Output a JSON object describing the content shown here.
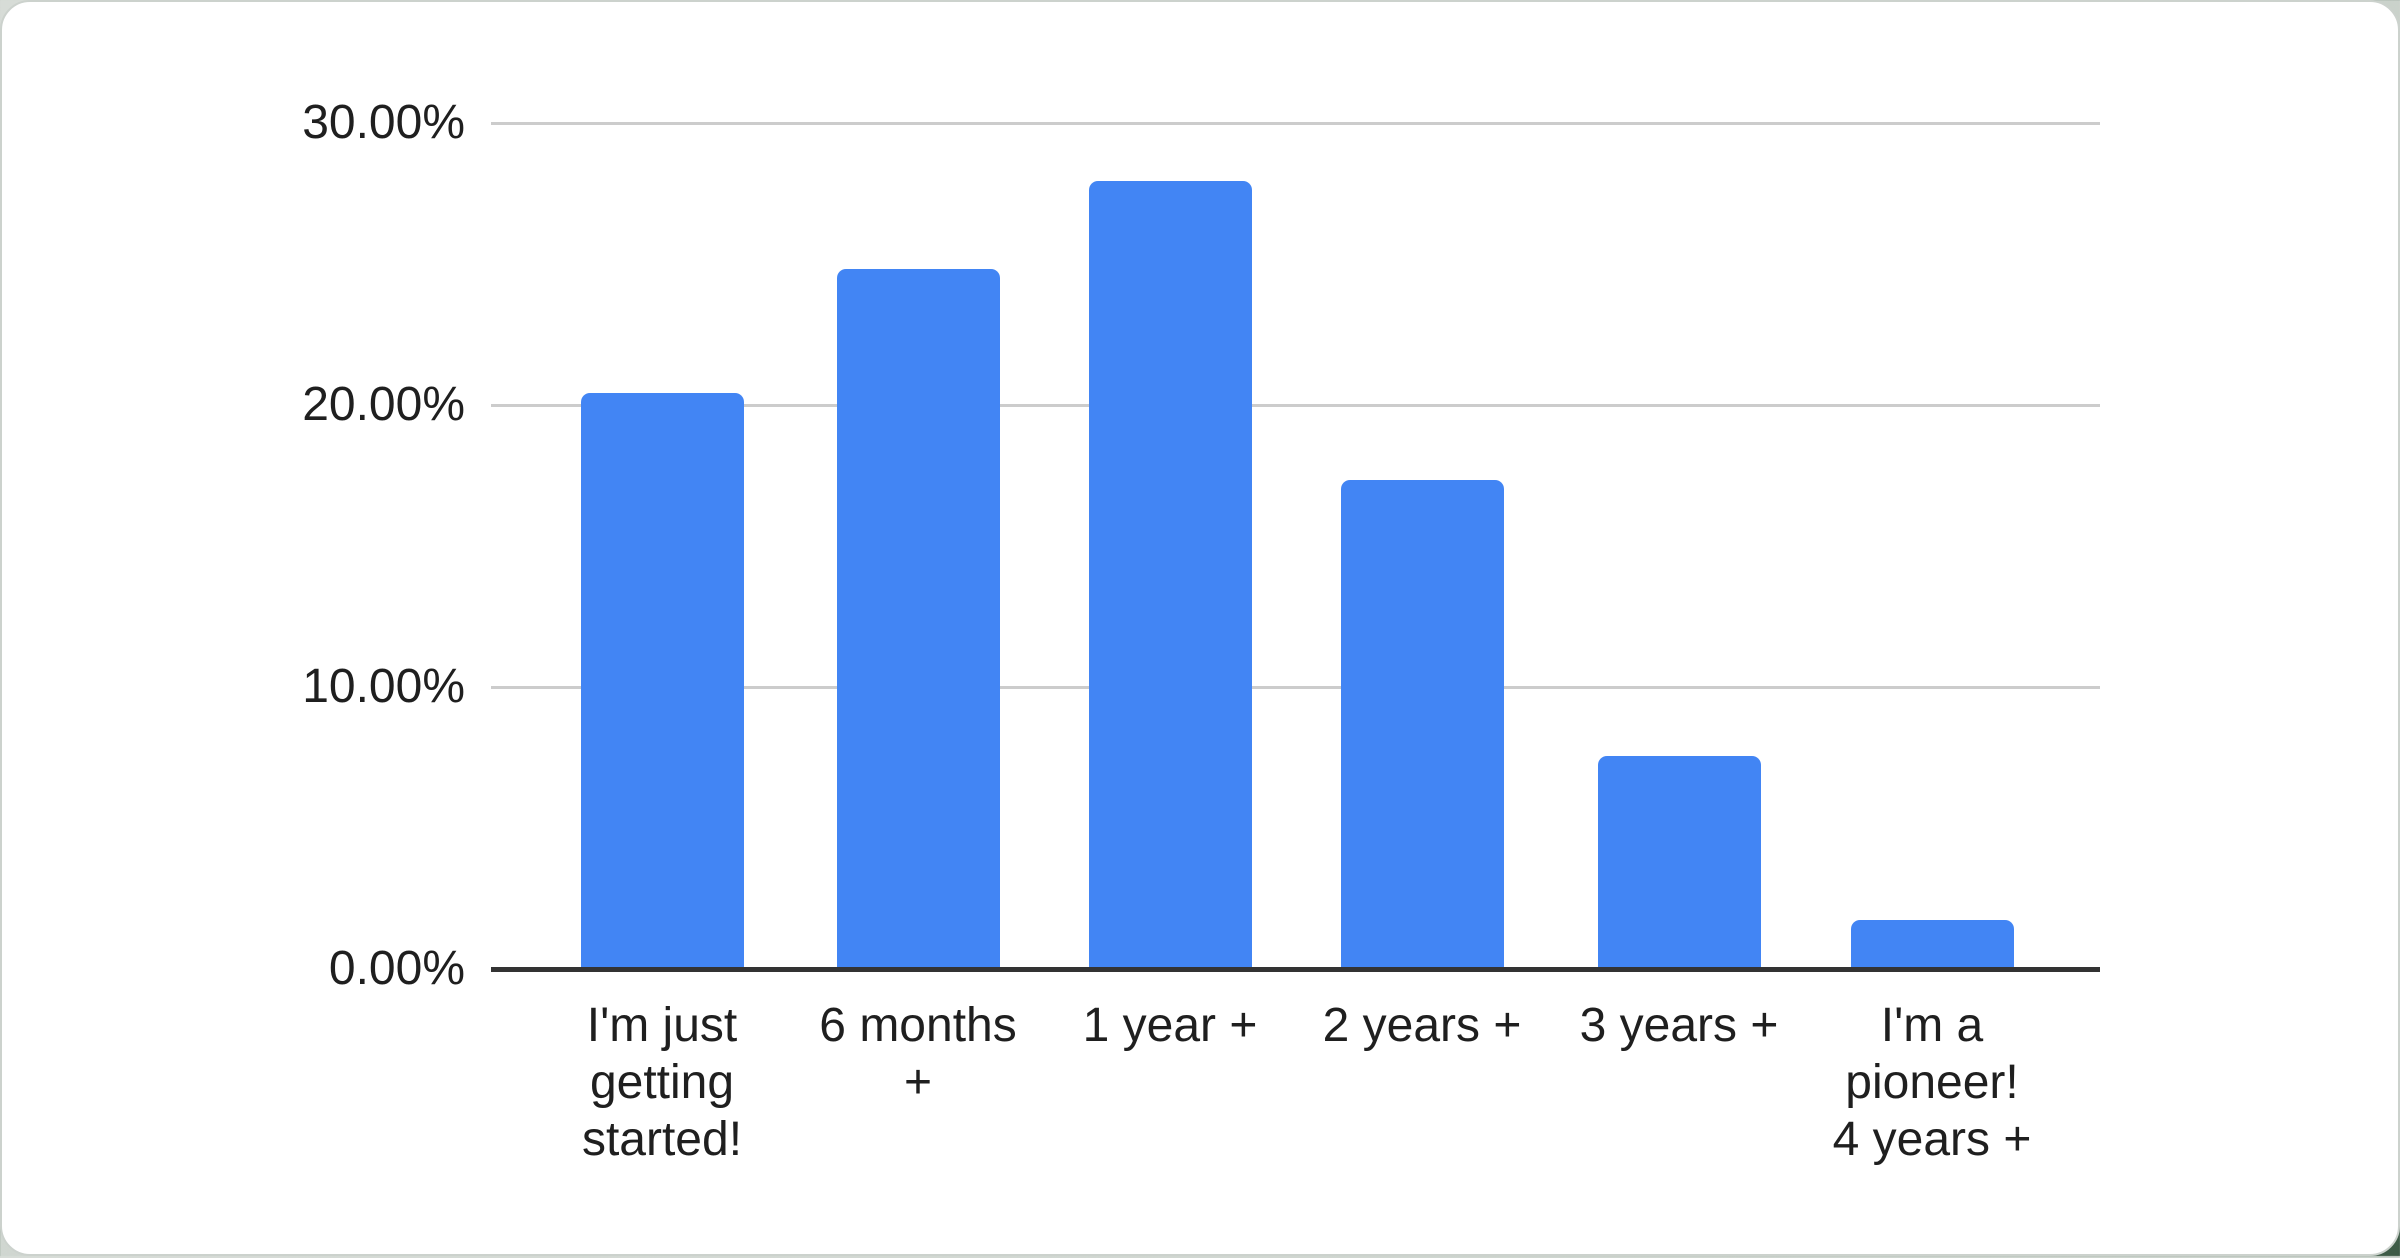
{
  "page": {
    "outer_background": "#c9d1ca",
    "card_background": "#ffffff",
    "card_border_color": "#ccd2cd"
  },
  "chart_data": {
    "type": "bar",
    "title": "",
    "xlabel": "",
    "ylabel": "",
    "categories": [
      "I'm just getting started!",
      "6 months +",
      "1 year +",
      "2 years +",
      "3 years +",
      "I'm a pioneer! 4 years +"
    ],
    "x_tick_lines": [
      [
        "I'm just",
        "getting",
        "started!"
      ],
      [
        "6 months",
        "+"
      ],
      [
        "1 year +"
      ],
      [
        "2 years +"
      ],
      [
        "3 years +"
      ],
      [
        "I'm a",
        "pioneer!",
        "4 years +"
      ]
    ],
    "values": [
      20.4,
      24.8,
      27.9,
      17.3,
      7.5,
      1.7
    ],
    "value_unit": "percent",
    "ylim": [
      0,
      30
    ],
    "yticks": [
      {
        "value": 0,
        "label": "0.00%"
      },
      {
        "value": 10,
        "label": "10.00%"
      },
      {
        "value": 20,
        "label": "20.00%"
      },
      {
        "value": 30,
        "label": "30.00%"
      }
    ],
    "grid": true,
    "legend_position": "none",
    "bar_color": "#4285f4",
    "gridline_color": "#cccccc",
    "axis_line_color": "#333333",
    "tick_text_color": "#1f1f1f"
  }
}
